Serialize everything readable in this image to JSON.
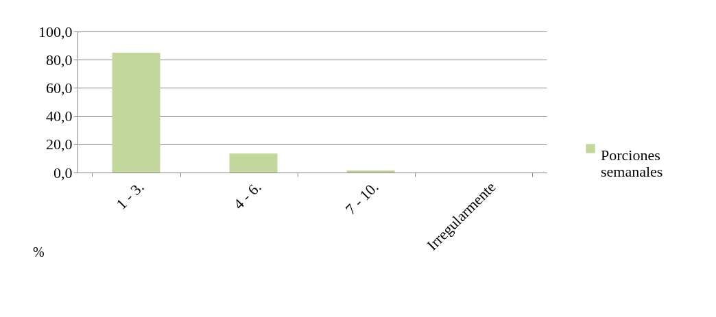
{
  "chart_data": {
    "type": "bar",
    "categories": [
      "1 - 3.",
      "4 - 6.",
      "7 - 10.",
      "Irregularmente"
    ],
    "series": [
      {
        "name": "Porciones semanales",
        "color": "#c3d69b",
        "values": [
          85.0,
          13.5,
          1.5,
          0
        ]
      }
    ],
    "ylim": [
      0,
      100
    ],
    "yticks": [
      {
        "value": 0,
        "label": "0,0"
      },
      {
        "value": 20,
        "label": "20,0"
      },
      {
        "value": 40,
        "label": "40,0"
      },
      {
        "value": 60,
        "label": "60,0"
      },
      {
        "value": 80,
        "label": "80,0"
      },
      {
        "value": 100,
        "label": "100,0"
      }
    ],
    "grid": "y",
    "legend": "right",
    "annotations": [
      "%"
    ]
  }
}
